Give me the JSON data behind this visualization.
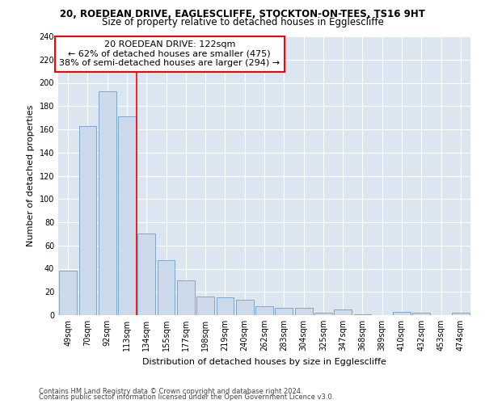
{
  "title": "20, ROEDEAN DRIVE, EAGLESCLIFFE, STOCKTON-ON-TEES, TS16 9HT",
  "subtitle": "Size of property relative to detached houses in Egglescliffe",
  "xlabel": "Distribution of detached houses by size in Egglescliffe",
  "ylabel": "Number of detached properties",
  "categories": [
    "49sqm",
    "70sqm",
    "92sqm",
    "113sqm",
    "134sqm",
    "155sqm",
    "177sqm",
    "198sqm",
    "219sqm",
    "240sqm",
    "262sqm",
    "283sqm",
    "304sqm",
    "325sqm",
    "347sqm",
    "368sqm",
    "389sqm",
    "410sqm",
    "432sqm",
    "453sqm",
    "474sqm"
  ],
  "values": [
    38,
    163,
    193,
    171,
    70,
    47,
    30,
    16,
    15,
    13,
    8,
    6,
    6,
    2,
    5,
    1,
    0,
    3,
    2,
    0,
    2
  ],
  "bar_color": "#cddaeb",
  "bar_edge_color": "#7aa8cc",
  "red_line_index": 3.5,
  "red_line_label": "20 ROEDEAN DRIVE: 122sqm",
  "annotation_line1": "← 62% of detached houses are smaller (475)",
  "annotation_line2": "38% of semi-detached houses are larger (294) →",
  "ylim": [
    0,
    240
  ],
  "yticks": [
    0,
    20,
    40,
    60,
    80,
    100,
    120,
    140,
    160,
    180,
    200,
    220,
    240
  ],
  "footnote1": "Contains HM Land Registry data © Crown copyright and database right 2024.",
  "footnote2": "Contains public sector information licensed under the Open Government Licence v3.0.",
  "bg_color": "#dce6f0",
  "fig_bg_color": "#ffffff",
  "title_fontsize": 8.5,
  "subtitle_fontsize": 8.5,
  "axis_label_fontsize": 8,
  "tick_fontsize": 7,
  "annotation_fontsize": 8,
  "footnote_fontsize": 6
}
